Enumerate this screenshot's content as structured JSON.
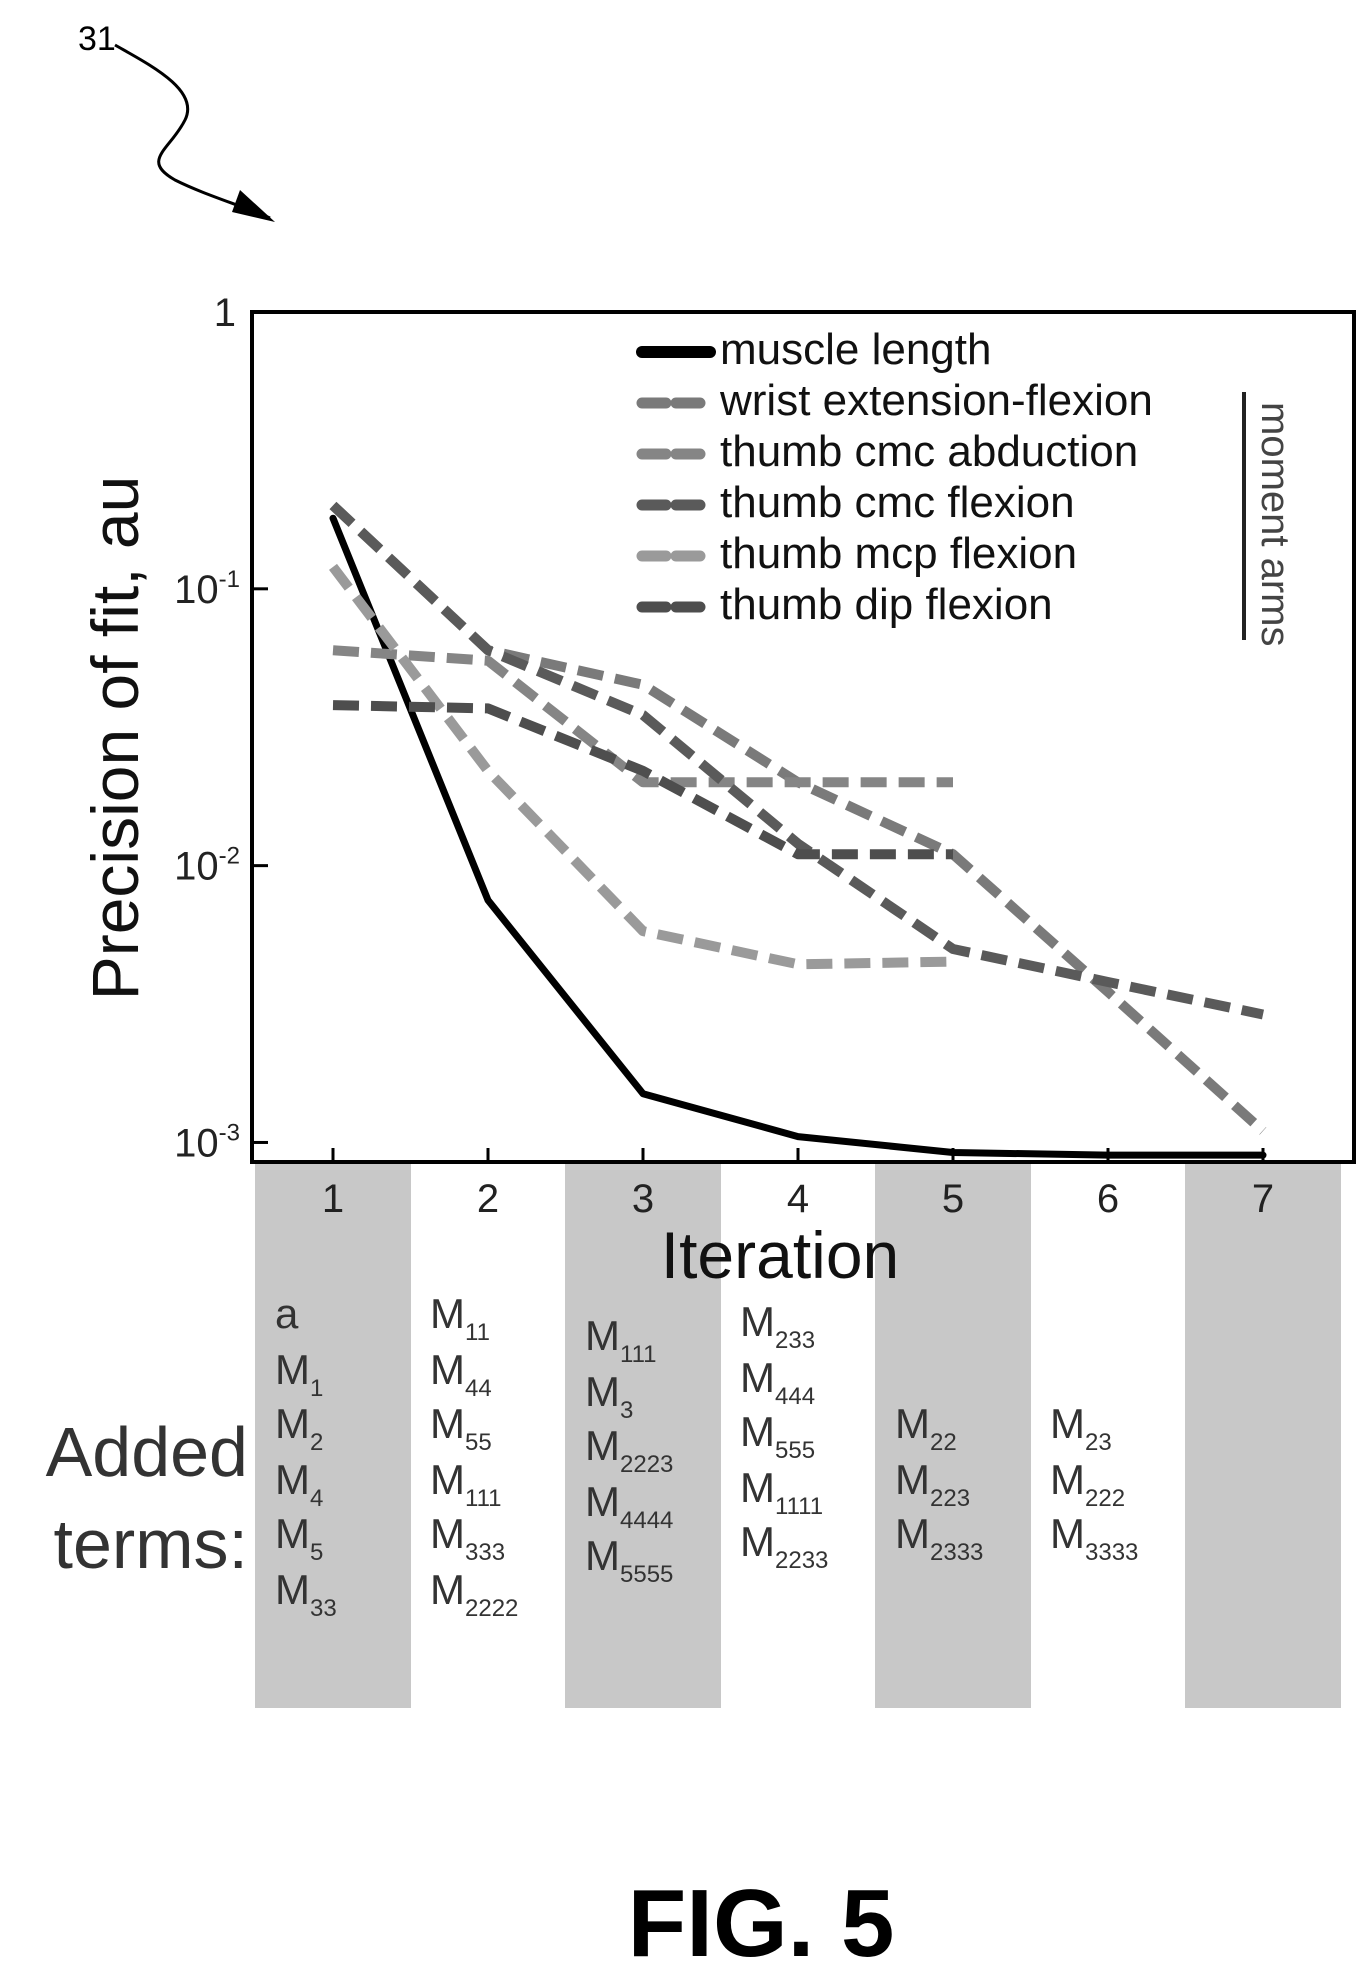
{
  "reference_numeral": "31",
  "figure_caption": "FIG. 5",
  "added_terms_label": [
    "Added",
    "terms:"
  ],
  "moment_arms_label": "moment arms",
  "colors": {
    "muscle_length": "#000000",
    "wrist_extension_flexion": "#7a7a7a",
    "thumb_cmc_abduction": "#858585",
    "thumb_cmc_flexion": "#5a5a5a",
    "thumb_mcp_flexion": "#9a9a9a",
    "thumb_dip_flexion": "#4e4e4e",
    "band": "#c8c8c8"
  },
  "chart_data": {
    "type": "line",
    "title": "",
    "xlabel": "Iteration",
    "ylabel": "Precision of fit, au",
    "yscale": "log",
    "xlim": [
      0.7,
      7.5
    ],
    "ylim": [
      0.00085,
      1
    ],
    "x_ticks": [
      "1",
      "2",
      "3",
      "4",
      "5",
      "6",
      "7"
    ],
    "y_ticks": [
      {
        "value": 1,
        "base": "1",
        "exp": ""
      },
      {
        "value": 0.1,
        "base": "10",
        "exp": "-1"
      },
      {
        "value": 0.01,
        "base": "10",
        "exp": "-2"
      },
      {
        "value": 0.001,
        "base": "10",
        "exp": "-3"
      }
    ],
    "grid": false,
    "legend_position": "top-right",
    "series": [
      {
        "name": "muscle length",
        "style": "solid",
        "color_key": "muscle_length",
        "x": [
          1,
          2,
          3,
          4,
          5,
          6,
          7
        ],
        "y": [
          0.18,
          0.0075,
          0.0015,
          0.00105,
          0.00092,
          0.0009,
          0.0009
        ]
      },
      {
        "name": "wrist extension-flexion",
        "style": "dashed",
        "color_key": "wrist_extension_flexion",
        "x": [
          1,
          2,
          3,
          4,
          5,
          6,
          7
        ],
        "y": [
          0.2,
          0.06,
          0.045,
          0.02,
          0.011,
          0.0035,
          0.0011
        ]
      },
      {
        "name": "thumb cmc abduction",
        "style": "dashed",
        "color_key": "thumb_cmc_abduction",
        "x": [
          1,
          2,
          3,
          4,
          5
        ],
        "y": [
          0.06,
          0.055,
          0.02,
          0.02,
          0.02
        ]
      },
      {
        "name": "thumb cmc flexion",
        "style": "dashed",
        "color_key": "thumb_cmc_flexion",
        "x": [
          1,
          2,
          3,
          4,
          5,
          6,
          7
        ],
        "y": [
          0.2,
          0.06,
          0.035,
          0.012,
          0.005,
          0.0038,
          0.0029
        ]
      },
      {
        "name": "thumb mcp flexion",
        "style": "dashed",
        "color_key": "thumb_mcp_flexion",
        "x": [
          1,
          2,
          3,
          4,
          5
        ],
        "y": [
          0.12,
          0.022,
          0.0058,
          0.0044,
          0.0045
        ]
      },
      {
        "name": "thumb dip flexion",
        "style": "dashed",
        "color_key": "thumb_dip_flexion",
        "x": [
          1,
          2,
          3,
          4,
          5
        ],
        "y": [
          0.038,
          0.037,
          0.022,
          0.011,
          0.011
        ]
      }
    ]
  },
  "added_terms": [
    {
      "iteration": 1,
      "shaded": true,
      "terms": [
        [
          "a",
          ""
        ],
        [
          "M",
          "1"
        ],
        [
          "M",
          "2"
        ],
        [
          "M",
          "4"
        ],
        [
          "M",
          "5"
        ],
        [
          "M",
          "33"
        ]
      ]
    },
    {
      "iteration": 2,
      "shaded": false,
      "terms": [
        [
          "M",
          "11"
        ],
        [
          "M",
          "44"
        ],
        [
          "M",
          "55"
        ],
        [
          "M",
          "111"
        ],
        [
          "M",
          "333"
        ],
        [
          "M",
          "2222"
        ]
      ]
    },
    {
      "iteration": 3,
      "shaded": true,
      "terms": [
        [
          "M",
          "111"
        ],
        [
          "M",
          "3"
        ],
        [
          "M",
          "2223"
        ],
        [
          "M",
          "4444"
        ],
        [
          "M",
          "5555"
        ]
      ]
    },
    {
      "iteration": 4,
      "shaded": false,
      "terms": [
        [
          "M",
          "233"
        ],
        [
          "M",
          "444"
        ],
        [
          "M",
          "555"
        ],
        [
          "M",
          "1111"
        ],
        [
          "M",
          "2233"
        ]
      ]
    },
    {
      "iteration": 5,
      "shaded": true,
      "terms": [
        [
          "M",
          "22"
        ],
        [
          "M",
          "223"
        ],
        [
          "M",
          "2333"
        ]
      ]
    },
    {
      "iteration": 6,
      "shaded": false,
      "terms": [
        [
          "M",
          "23"
        ],
        [
          "M",
          "222"
        ],
        [
          "M",
          "3333"
        ]
      ]
    },
    {
      "iteration": 7,
      "shaded": true,
      "terms": []
    }
  ]
}
